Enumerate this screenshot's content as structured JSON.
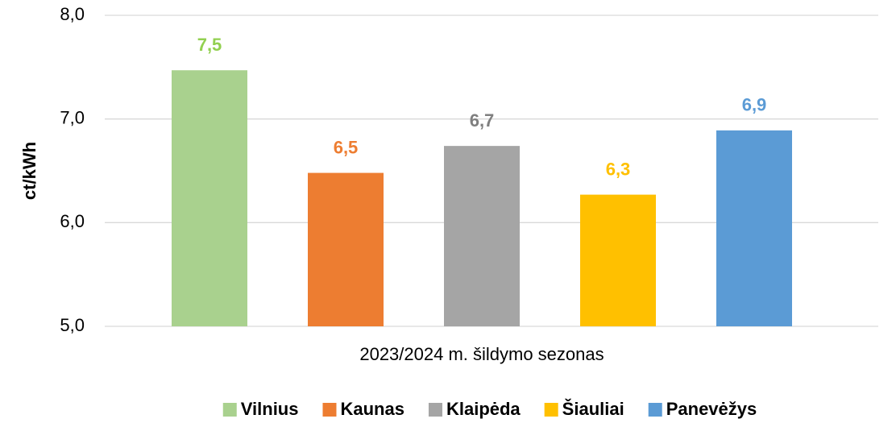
{
  "chart_data": {
    "type": "bar",
    "y_label": "ct/kWh",
    "categories": [
      "2023/2024 m. šildymo sezonas"
    ],
    "series": [
      {
        "name": "Vilnius",
        "color": "#a9d18e",
        "label_color": "#92d050",
        "values": [
          7.47
        ],
        "value_labels": [
          "7,5"
        ]
      },
      {
        "name": "Kaunas",
        "color": "#ed7d31",
        "label_color": "#ed7d31",
        "values": [
          6.48
        ],
        "value_labels": [
          "6,5"
        ]
      },
      {
        "name": "Klaipėda",
        "color": "#a5a5a5",
        "label_color": "#7f7f7f",
        "values": [
          6.74
        ],
        "value_labels": [
          "6,7"
        ]
      },
      {
        "name": "Šiauliai",
        "color": "#ffc000",
        "label_color": "#ffc000",
        "values": [
          6.27
        ],
        "value_labels": [
          "6,3"
        ]
      },
      {
        "name": "Panevėžys",
        "color": "#5b9bd5",
        "label_color": "#5b9bd5",
        "values": [
          6.89
        ],
        "value_labels": [
          "6,9"
        ]
      }
    ],
    "ylim": [
      5,
      8
    ],
    "yticks": [
      {
        "value": 5,
        "label": "5,0"
      },
      {
        "value": 6,
        "label": "6,0"
      },
      {
        "value": 7,
        "label": "7,0"
      },
      {
        "value": 8,
        "label": "8,0"
      }
    ],
    "grid": true,
    "legend": "bottom"
  }
}
